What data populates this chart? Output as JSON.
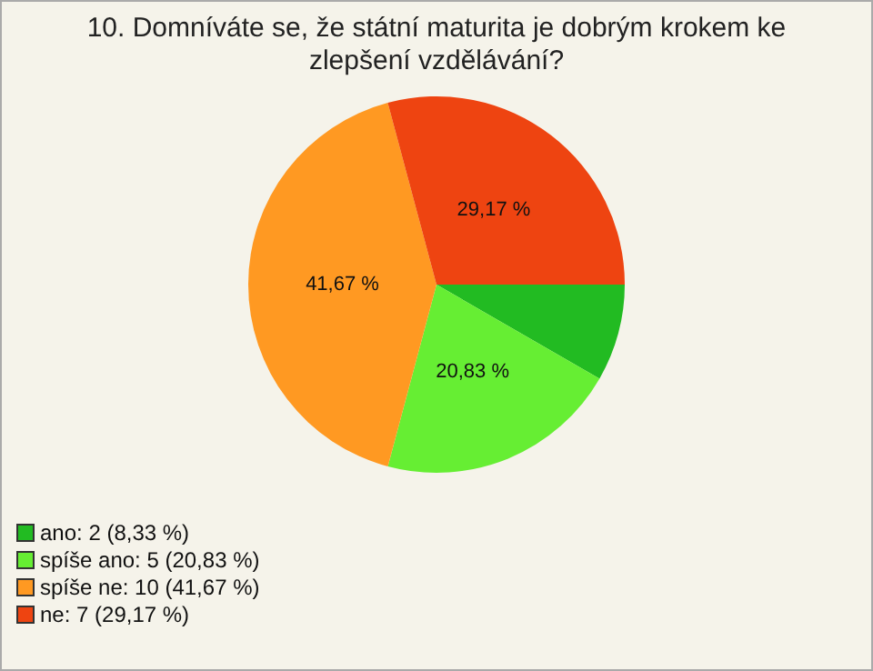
{
  "chart_data": {
    "type": "pie",
    "title": "10. Domníváte se, že státní maturita je dobrým krokem ke zlepšení vzdělávání?",
    "categories": [
      "ano: 2 (8,33 %)",
      "spíše ano: 5 (20,83 %)",
      "spíše ne: 10 (41,67 %)",
      "ne: 7 (29,17 %)"
    ],
    "values": [
      8.33,
      20.83,
      41.67,
      29.17
    ],
    "colors": [
      "#22bb22",
      "#66ee33",
      "#ff9922",
      "#ee4411"
    ],
    "value_labels": [
      null,
      "20,83 %",
      "41,67 %",
      "29,17 %"
    ],
    "legend": "bottom left"
  }
}
